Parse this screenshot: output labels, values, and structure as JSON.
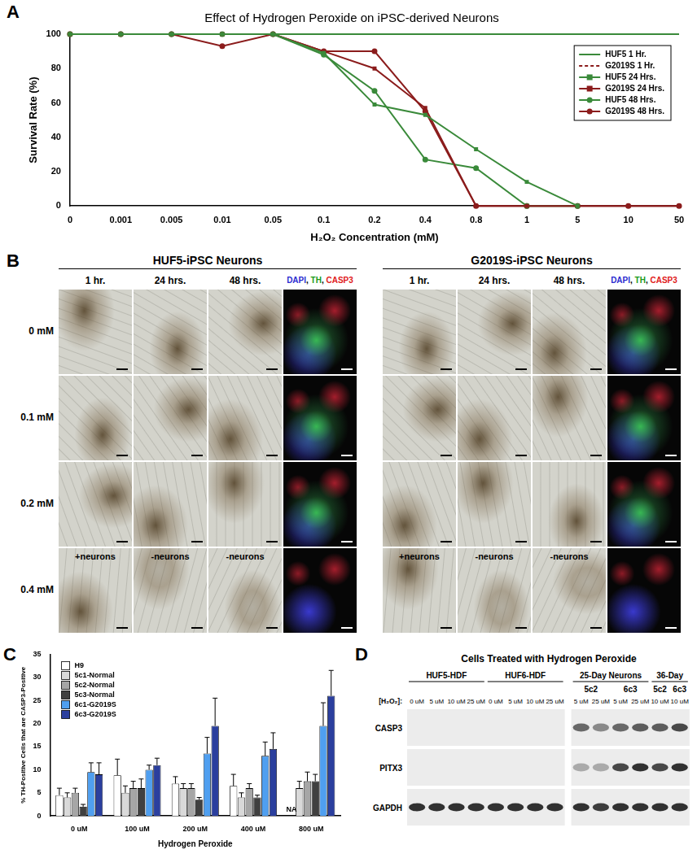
{
  "chart_data": [
    {
      "panel_label": "A",
      "type": "line",
      "title": "Effect of Hydrogen Peroxide on iPSC-derived Neurons",
      "x_label": "H₂O₂ Concentration (mM)",
      "y_label": "Survival Rate (%)",
      "categories": [
        "0",
        "0.001",
        "0.005",
        "0.01",
        "0.05",
        "0.1",
        "0.2",
        "0.4",
        "0.8",
        "1",
        "5",
        "10",
        "50"
      ],
      "series": [
        {
          "name": "HUF5 1 Hr.",
          "color": "#3a8a3a",
          "marker": "none",
          "line_style": "solid",
          "values": [
            100,
            100,
            100,
            100,
            100,
            100,
            100,
            100,
            100,
            100,
            100,
            100,
            100
          ]
        },
        {
          "name": "G2019S 1 Hr.",
          "color": "#8b1c1c",
          "marker": "none",
          "line_style": "dashed",
          "values": [
            100,
            100,
            100,
            100,
            100,
            100,
            100,
            100,
            100,
            100,
            100,
            100,
            100
          ]
        },
        {
          "name": "HUF5 24 Hrs.",
          "color": "#3a8a3a",
          "marker": "square",
          "line_style": "solid",
          "values": [
            100,
            100,
            100,
            100,
            100,
            89,
            59,
            53,
            33,
            14,
            0,
            null,
            null
          ]
        },
        {
          "name": "G2019S 24 Hrs.",
          "color": "#8b1c1c",
          "marker": "square",
          "line_style": "solid",
          "values": [
            100,
            100,
            100,
            100,
            100,
            90,
            80,
            57,
            0,
            0,
            0,
            0,
            0
          ]
        },
        {
          "name": "HUF5 48 Hrs.",
          "color": "#3a8a3a",
          "marker": "circle",
          "line_style": "solid",
          "values": [
            100,
            100,
            100,
            100,
            100,
            88,
            67,
            27,
            22,
            0,
            0,
            null,
            null
          ]
        },
        {
          "name": "G2019S 48 Hrs.",
          "color": "#8b1c1c",
          "marker": "circle",
          "line_style": "solid",
          "values": [
            100,
            100,
            100,
            93,
            100,
            90,
            90,
            55,
            0,
            0,
            0,
            0,
            0
          ]
        }
      ],
      "ylim": [
        0,
        100
      ],
      "yticks": [
        0,
        20,
        40,
        60,
        80,
        100
      ],
      "grid": false,
      "legend": "upper right"
    },
    {
      "panel_label": "C",
      "type": "bar",
      "x_label": "Hydrogen Peroxide",
      "y_label": "% TH-Positive Cells that are CASP3-Positive",
      "categories": [
        "0 uM",
        "100 uM",
        "200 uM",
        "400 uM",
        "800 uM"
      ],
      "series": [
        {
          "name": "H9",
          "color": "#ffffff",
          "values": [
            4.5,
            8.8,
            7,
            6.5,
            null
          ],
          "errors": [
            1.5,
            3.5,
            1.5,
            2.5,
            null
          ]
        },
        {
          "name": "5c1-Normal",
          "color": "#d9d9d9",
          "values": [
            4,
            5,
            6,
            4,
            6
          ],
          "errors": [
            1,
            1.5,
            1,
            1,
            1.5
          ]
        },
        {
          "name": "5c2-Normal",
          "color": "#a6a6a6",
          "values": [
            5,
            6,
            6,
            6,
            7.5
          ],
          "errors": [
            1,
            1.5,
            1,
            1,
            2
          ]
        },
        {
          "name": "5c3-Normal",
          "color": "#404040",
          "values": [
            2,
            6,
            3.5,
            4,
            7.5
          ],
          "errors": [
            0.5,
            2,
            0.5,
            0.5,
            1.5
          ]
        },
        {
          "name": "6c1-G2019S",
          "color": "#4f9ff0",
          "values": [
            9.5,
            10,
            13.5,
            13,
            19.5
          ],
          "errors": [
            2,
            1,
            3.5,
            3,
            5
          ]
        },
        {
          "name": "6c3-G2019S",
          "color": "#2b3f9e",
          "values": [
            9,
            11,
            19.5,
            14.5,
            26
          ],
          "errors": [
            2.5,
            1.5,
            6,
            3.5,
            5.5
          ]
        }
      ],
      "annotations": [
        {
          "series": "H9",
          "category": "800 uM",
          "text": "NA"
        }
      ],
      "ylim": [
        0,
        35
      ],
      "yticks": [
        0,
        5,
        10,
        15,
        20,
        25,
        30,
        35
      ],
      "grid": false,
      "legend": "upper left"
    }
  ],
  "panel_b": {
    "panel_label": "B",
    "groups": [
      "HUF5-iPSC Neurons",
      "G2019S-iPSC Neurons"
    ],
    "columns": [
      "1 hr.",
      "24 hrs.",
      "48 hrs."
    ],
    "channels": [
      {
        "name": "DAPI",
        "color": "#2b2bd0"
      },
      {
        "name": "TH",
        "color": "#1a9a1a"
      },
      {
        "name": "CASP3",
        "color": "#e02020"
      }
    ],
    "channel_separator": ", ",
    "rows": [
      "0 mM",
      "0.1 mM",
      "0.2 mM",
      "0.4 mM"
    ],
    "overlay_row": "0.4 mM",
    "overlays": [
      "+neurons",
      "-neurons",
      "-neurons"
    ]
  },
  "panel_d": {
    "panel_label": "D",
    "title": "Cells Treated with Hydrogen Peroxide",
    "row_label": "[H₂O₂]:",
    "groups": [
      {
        "name": "HUF5-HDF",
        "lanes": [
          "0 uM",
          "5 uM",
          "10 uM",
          "25 uM"
        ]
      },
      {
        "name": "HUF6-HDF",
        "lanes": [
          "0 uM",
          "5 uM",
          "10 uM",
          "25 uM"
        ]
      },
      {
        "name": "25-Day Neurons",
        "subgroups": [
          {
            "name": "5c2",
            "lanes": [
              "5 uM",
              "25 uM"
            ]
          },
          {
            "name": "6c3",
            "lanes": [
              "5 uM",
              "25 uM"
            ]
          }
        ]
      },
      {
        "name": "36-Day",
        "subgroups": [
          {
            "name": "5c2",
            "lanes": [
              "10 uM"
            ]
          },
          {
            "name": "6c3",
            "lanes": [
              "10 uM"
            ]
          }
        ]
      }
    ],
    "bands": [
      {
        "protein": "CASP3",
        "intensity": [
          0,
          0,
          0,
          0,
          0,
          0,
          0,
          0,
          0.6,
          0.45,
          0.6,
          0.65,
          0.65,
          0.75
        ]
      },
      {
        "protein": "PITX3",
        "intensity": [
          0,
          0,
          0,
          0,
          0,
          0,
          0,
          0,
          0.3,
          0.3,
          0.75,
          0.85,
          0.75,
          0.85
        ]
      },
      {
        "protein": "GAPDH",
        "intensity": [
          0.85,
          0.85,
          0.85,
          0.85,
          0.85,
          0.85,
          0.85,
          0.85,
          0.85,
          0.8,
          0.85,
          0.85,
          0.85,
          0.85
        ]
      }
    ]
  }
}
